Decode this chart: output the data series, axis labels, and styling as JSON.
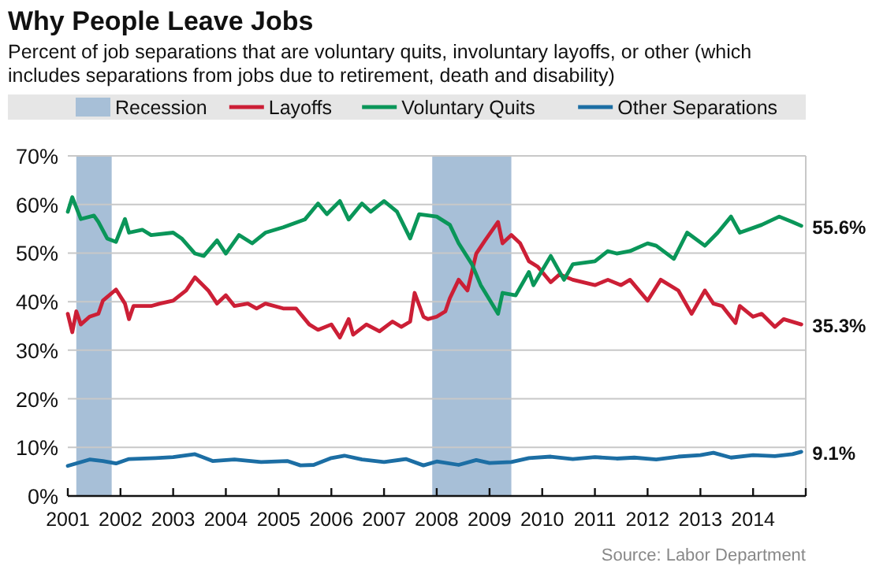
{
  "chart_data": {
    "type": "line",
    "title": "Why People Leave Jobs",
    "subtitle": "Percent of job separations that are voluntary quits, involuntary layoffs, or other (which includes separations from jobs due to retirement, death and disability)",
    "xlim": [
      "2001-01",
      "2015-01"
    ],
    "xticks": [
      "2001",
      "2002",
      "2003",
      "2004",
      "2005",
      "2006",
      "2007",
      "2008",
      "2009",
      "2010",
      "2011",
      "2012",
      "2013",
      "2014",
      {
        "value": "2015",
        "label": null
      }
    ],
    "ylim": [
      0,
      70
    ],
    "yticks": [
      {
        "value": 0,
        "label": "0%"
      },
      {
        "value": 10,
        "label": "10%"
      },
      {
        "value": 20,
        "label": "20%"
      },
      {
        "value": 30,
        "label": "30%"
      },
      {
        "value": 40,
        "label": "40%"
      },
      {
        "value": 50,
        "label": "50%"
      },
      {
        "value": 60,
        "label": "60%"
      },
      {
        "value": 70,
        "label": "70%"
      }
    ],
    "grid": "y",
    "legend": "top",
    "line_style": "solid",
    "marker": "none",
    "bands": [
      {
        "axis": "x",
        "from": "2001-03",
        "to": "2001-11",
        "label": "Recession",
        "color": "#a7bfd7"
      },
      {
        "axis": "x",
        "from": "2007-12",
        "to": "2009-06",
        "color": "#a7bfd7"
      }
    ],
    "series": [
      {
        "name": "Layoffs",
        "color": "#cc1f36",
        "x": [
          "2001-01",
          "2001-02",
          "2001-03",
          "2001-04",
          "2001-06",
          "2001-08",
          "2001-09",
          "2001-12",
          "2002-02",
          "2002-03",
          "2002-04",
          "2002-08",
          "2002-10",
          "2003-01",
          "2003-04",
          "2003-06",
          "2003-09",
          "2003-11",
          "2004-01",
          "2004-03",
          "2004-06",
          "2004-08",
          "2004-10",
          "2005-02",
          "2005-05",
          "2005-08",
          "2005-10",
          "2006-01",
          "2006-03",
          "2006-05",
          "2006-06",
          "2006-09",
          "2006-12",
          "2007-03",
          "2007-05",
          "2007-07",
          "2007-08",
          "2007-10",
          "2007-11",
          "2008-01",
          "2008-03",
          "2008-04",
          "2008-06",
          "2008-08",
          "2008-10",
          "2008-12",
          "2009-03",
          "2009-04",
          "2009-06",
          "2009-08",
          "2009-10",
          "2009-12",
          "2010-03",
          "2010-05",
          "2010-08",
          "2011-01",
          "2011-04",
          "2011-07",
          "2011-09",
          "2012-01",
          "2012-04",
          "2012-08",
          "2012-11",
          "2013-02",
          "2013-04",
          "2013-06",
          "2013-09",
          "2013-10",
          "2014-01",
          "2014-03",
          "2014-06",
          "2014-08",
          "2014-12"
        ],
        "values": [
          37.5,
          33.7,
          38,
          35.3,
          36.9,
          37.5,
          40.2,
          42.5,
          39.6,
          36.4,
          39.1,
          39.1,
          39.6,
          40.2,
          42.3,
          45,
          42.3,
          39.6,
          41.3,
          39.1,
          39.6,
          38.6,
          39.6,
          38.6,
          38.6,
          35.3,
          34.2,
          35.3,
          32.6,
          36.4,
          33.2,
          35.3,
          33.9,
          35.9,
          34.8,
          35.9,
          41.8,
          36.9,
          36.4,
          36.9,
          38,
          40.7,
          44.5,
          42.3,
          49.9,
          52.6,
          56.4,
          52,
          53.7,
          52,
          48.3,
          47.2,
          44,
          45.6,
          44.5,
          43.4,
          44.5,
          43.4,
          44.5,
          40.2,
          44.5,
          42.3,
          37.5,
          42.3,
          39.6,
          39.1,
          35.6,
          39.1,
          36.9,
          37.5,
          34.8,
          36.4,
          35.3
        ]
      },
      {
        "name": "Voluntary Quits",
        "color": "#0a9659",
        "x": [
          "2001-01",
          "2001-02",
          "2001-04",
          "2001-07",
          "2001-08",
          "2001-10",
          "2001-12",
          "2002-02",
          "2002-03",
          "2002-06",
          "2002-08",
          "2003-01",
          "2003-03",
          "2003-06",
          "2003-08",
          "2003-11",
          "2004-01",
          "2004-04",
          "2004-07",
          "2004-10",
          "2005-02",
          "2005-07",
          "2005-10",
          "2005-12",
          "2006-03",
          "2006-05",
          "2006-08",
          "2006-10",
          "2007-01",
          "2007-04",
          "2007-07",
          "2007-09",
          "2008-01",
          "2008-04",
          "2008-06",
          "2008-09",
          "2008-11",
          "2009-03",
          "2009-04",
          "2009-07",
          "2009-10",
          "2009-11",
          "2010-03",
          "2010-06",
          "2010-08",
          "2011-01",
          "2011-04",
          "2011-06",
          "2011-09",
          "2012-01",
          "2012-03",
          "2012-07",
          "2012-10",
          "2013-02",
          "2013-05",
          "2013-08",
          "2013-10",
          "2014-03",
          "2014-07",
          "2014-10",
          "2014-12"
        ],
        "values": [
          58.5,
          61.5,
          57,
          57.7,
          56.4,
          53,
          52.3,
          57,
          54.2,
          54.8,
          53.7,
          54.2,
          53,
          49.9,
          49.4,
          52.6,
          49.9,
          53.7,
          52,
          54.2,
          55.3,
          56.9,
          60.2,
          58,
          60.7,
          56.9,
          60.2,
          58.5,
          60.7,
          58.5,
          53,
          58,
          57.5,
          55.8,
          52,
          47.7,
          43.4,
          37.5,
          41.8,
          41.3,
          46.1,
          43.4,
          49.4,
          44.5,
          47.7,
          48.3,
          50.4,
          49.9,
          50.4,
          52,
          51.5,
          48.8,
          54.2,
          51.5,
          54.2,
          57.5,
          54.2,
          55.8,
          57.5,
          56.4,
          55.6
        ]
      },
      {
        "name": "Other Separations",
        "color": "#1c6ea4",
        "x": [
          "2001-01",
          "2001-06",
          "2001-09",
          "2001-12",
          "2002-03",
          "2002-09",
          "2003-01",
          "2003-06",
          "2003-10",
          "2004-03",
          "2004-09",
          "2005-03",
          "2005-06",
          "2005-09",
          "2006-01",
          "2006-04",
          "2006-08",
          "2007-01",
          "2007-06",
          "2007-10",
          "2008-01",
          "2008-06",
          "2008-10",
          "2009-01",
          "2009-06",
          "2009-10",
          "2010-03",
          "2010-08",
          "2011-01",
          "2011-06",
          "2011-10",
          "2012-03",
          "2012-08",
          "2013-01",
          "2013-04",
          "2013-08",
          "2014-01",
          "2014-06",
          "2014-10",
          "2014-12"
        ],
        "values": [
          6.2,
          7.5,
          7.2,
          6.7,
          7.6,
          7.8,
          8,
          8.6,
          7.2,
          7.5,
          7,
          7.2,
          6.3,
          6.4,
          7.8,
          8.3,
          7.5,
          7,
          7.6,
          6.3,
          7.1,
          6.4,
          7.4,
          6.8,
          7,
          7.8,
          8.1,
          7.6,
          8,
          7.7,
          7.9,
          7.5,
          8.1,
          8.4,
          8.9,
          7.9,
          8.4,
          8.2,
          8.6,
          9.1
        ]
      }
    ],
    "annotations": [
      {
        "text": "55.6%",
        "x": "2014-12",
        "y": 55.6
      },
      {
        "text": "35.3%",
        "x": "2014-12",
        "y": 35.3
      },
      {
        "text": "9.1%",
        "x": "2014-12",
        "y": 9.1
      },
      "Source: Labor Department"
    ]
  }
}
